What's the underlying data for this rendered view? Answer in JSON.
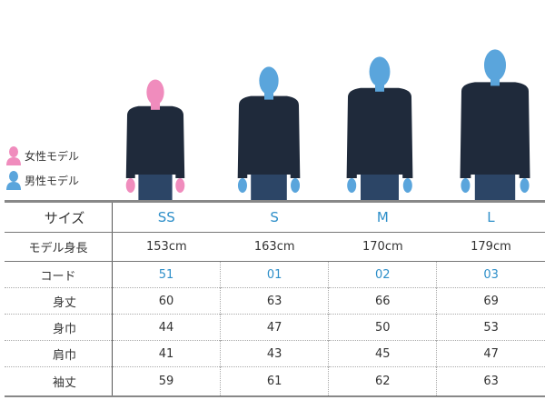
{
  "legend": [
    {
      "label": "女性モデル",
      "color": "#f08cbd",
      "icon": "female-silhouette-icon"
    },
    {
      "label": "男性モデル",
      "color": "#5aa5dc",
      "icon": "male-silhouette-icon"
    }
  ],
  "colors": {
    "accent": "#2e8fc9",
    "jacket": "#1f2a3b",
    "jeans": "#2c4566"
  },
  "sizes": [
    "SS",
    "S",
    "M",
    "L"
  ],
  "models": [
    {
      "size": "SS",
      "gender": "female"
    },
    {
      "size": "S",
      "gender": "male"
    },
    {
      "size": "M",
      "gender": "male"
    },
    {
      "size": "L",
      "gender": "male"
    }
  ],
  "table": {
    "size_label": "サイズ",
    "height_label": "モデル身長",
    "heights": [
      "153cm",
      "163cm",
      "170cm",
      "179cm"
    ],
    "code_label": "コード",
    "codes": [
      "51",
      "01",
      "02",
      "03"
    ],
    "measurements": [
      {
        "label": "身丈",
        "values": [
          "60",
          "63",
          "66",
          "69"
        ]
      },
      {
        "label": "身巾",
        "values": [
          "44",
          "47",
          "50",
          "53"
        ]
      },
      {
        "label": "肩巾",
        "values": [
          "41",
          "43",
          "45",
          "47"
        ]
      },
      {
        "label": "袖丈",
        "values": [
          "59",
          "61",
          "62",
          "63"
        ]
      }
    ]
  }
}
